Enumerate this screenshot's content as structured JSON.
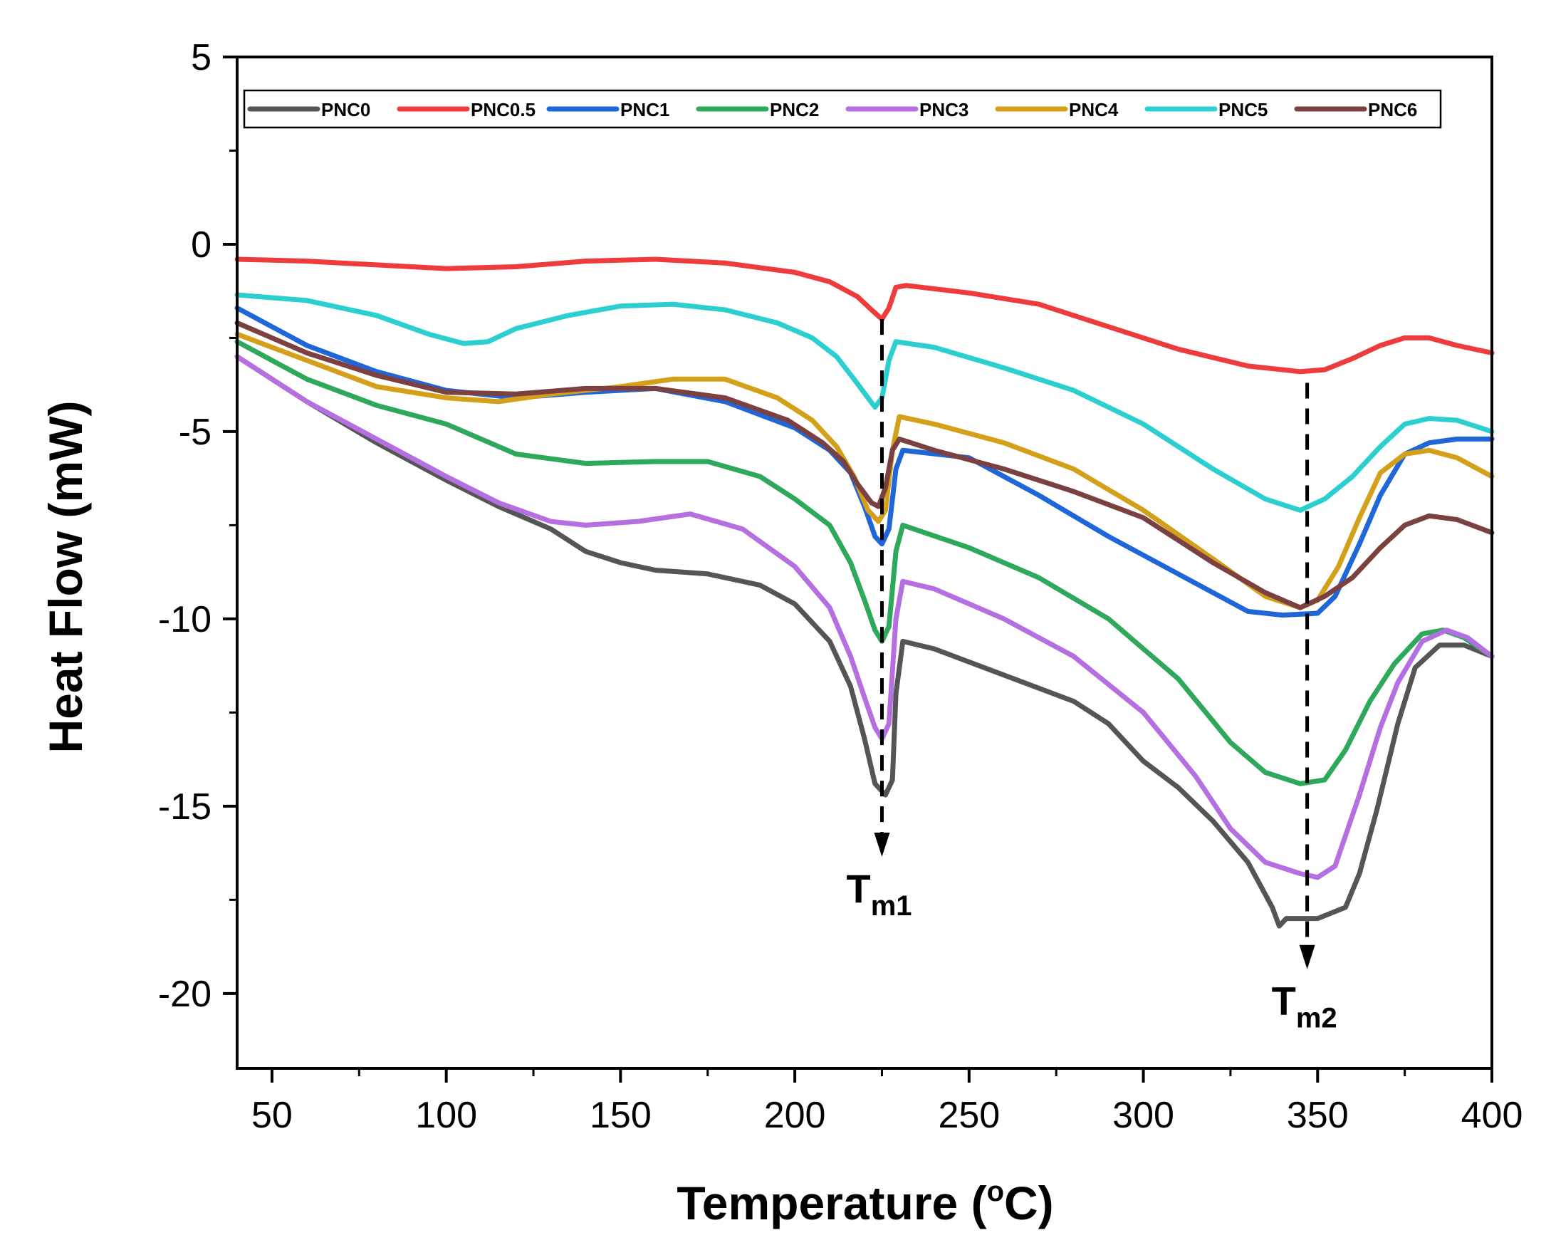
{
  "chart_data": {
    "type": "line",
    "title": "",
    "xlabel": "Temperature (",
    "xlabel_sup": "o",
    "xlabel_end": "C)",
    "ylabel": "Heat Flow (mW)",
    "xlim": [
      40,
      400
    ],
    "ylim": [
      -22,
      5
    ],
    "xticks": [
      50,
      100,
      150,
      200,
      250,
      300,
      350,
      400
    ],
    "yticks": [
      5,
      0,
      -5,
      -10,
      -15,
      -20
    ],
    "xtick_labels": [
      "50",
      "100",
      "150",
      "200",
      "250",
      "300",
      "350",
      "400"
    ],
    "ytick_labels": [
      "5",
      "0",
      "-5",
      "-10",
      "-15",
      "-20"
    ],
    "legend_position": "top",
    "annotations": [
      {
        "main": "T",
        "sub": "m1",
        "x": 225,
        "y_top": -2.0,
        "y_bottom": -16.2
      },
      {
        "main": "T",
        "sub": "m2",
        "x": 347,
        "y_top": -3.7,
        "y_bottom": -19.2
      }
    ],
    "series": [
      {
        "name": "PNC0",
        "color": "#555555",
        "points": [
          [
            40,
            -3.0
          ],
          [
            60,
            -4.2
          ],
          [
            80,
            -5.3
          ],
          [
            100,
            -6.3
          ],
          [
            115,
            -7.0
          ],
          [
            130,
            -7.6
          ],
          [
            140,
            -8.2
          ],
          [
            150,
            -8.5
          ],
          [
            160,
            -8.7
          ],
          [
            175,
            -8.8
          ],
          [
            190,
            -9.1
          ],
          [
            200,
            -9.6
          ],
          [
            210,
            -10.6
          ],
          [
            216,
            -11.8
          ],
          [
            220,
            -13.2
          ],
          [
            223,
            -14.4
          ],
          [
            226,
            -14.7
          ],
          [
            228,
            -14.3
          ],
          [
            229,
            -12.0
          ],
          [
            231,
            -10.6
          ],
          [
            240,
            -10.8
          ],
          [
            260,
            -11.5
          ],
          [
            280,
            -12.2
          ],
          [
            290,
            -12.8
          ],
          [
            300,
            -13.8
          ],
          [
            310,
            -14.5
          ],
          [
            320,
            -15.4
          ],
          [
            330,
            -16.5
          ],
          [
            337,
            -17.7
          ],
          [
            339,
            -18.2
          ],
          [
            341,
            -18.0
          ],
          [
            350,
            -18.0
          ],
          [
            358,
            -17.7
          ],
          [
            362,
            -16.8
          ],
          [
            367,
            -15.1
          ],
          [
            373,
            -12.8
          ],
          [
            378,
            -11.3
          ],
          [
            385,
            -10.7
          ],
          [
            392,
            -10.7
          ],
          [
            400,
            -11.0
          ]
        ]
      },
      {
        "name": "PNC0.5",
        "color": "#ee3b3b",
        "points": [
          [
            40,
            -0.4
          ],
          [
            60,
            -0.45
          ],
          [
            80,
            -0.55
          ],
          [
            100,
            -0.65
          ],
          [
            120,
            -0.6
          ],
          [
            140,
            -0.45
          ],
          [
            160,
            -0.4
          ],
          [
            180,
            -0.5
          ],
          [
            200,
            -0.75
          ],
          [
            210,
            -1.0
          ],
          [
            218,
            -1.4
          ],
          [
            222,
            -1.75
          ],
          [
            225,
            -2.0
          ],
          [
            227,
            -1.7
          ],
          [
            229,
            -1.15
          ],
          [
            232,
            -1.1
          ],
          [
            250,
            -1.3
          ],
          [
            270,
            -1.6
          ],
          [
            290,
            -2.2
          ],
          [
            310,
            -2.8
          ],
          [
            330,
            -3.25
          ],
          [
            345,
            -3.4
          ],
          [
            352,
            -3.35
          ],
          [
            360,
            -3.05
          ],
          [
            368,
            -2.7
          ],
          [
            375,
            -2.5
          ],
          [
            382,
            -2.5
          ],
          [
            390,
            -2.7
          ],
          [
            400,
            -2.9
          ]
        ]
      },
      {
        "name": "PNC1",
        "color": "#1f66d9",
        "points": [
          [
            40,
            -1.7
          ],
          [
            60,
            -2.7
          ],
          [
            80,
            -3.4
          ],
          [
            100,
            -3.9
          ],
          [
            120,
            -4.1
          ],
          [
            140,
            -3.95
          ],
          [
            160,
            -3.85
          ],
          [
            180,
            -4.2
          ],
          [
            200,
            -4.9
          ],
          [
            210,
            -5.5
          ],
          [
            216,
            -6.1
          ],
          [
            220,
            -7.0
          ],
          [
            223,
            -7.8
          ],
          [
            225,
            -8.0
          ],
          [
            227,
            -7.6
          ],
          [
            229,
            -6.0
          ],
          [
            231,
            -5.5
          ],
          [
            250,
            -5.7
          ],
          [
            270,
            -6.7
          ],
          [
            290,
            -7.8
          ],
          [
            310,
            -8.8
          ],
          [
            330,
            -9.8
          ],
          [
            340,
            -9.9
          ],
          [
            350,
            -9.85
          ],
          [
            355,
            -9.4
          ],
          [
            362,
            -8.0
          ],
          [
            368,
            -6.7
          ],
          [
            375,
            -5.6
          ],
          [
            382,
            -5.3
          ],
          [
            390,
            -5.2
          ],
          [
            400,
            -5.2
          ]
        ]
      },
      {
        "name": "PNC2",
        "color": "#2ea85a",
        "points": [
          [
            40,
            -2.6
          ],
          [
            60,
            -3.6
          ],
          [
            80,
            -4.3
          ],
          [
            100,
            -4.8
          ],
          [
            120,
            -5.6
          ],
          [
            140,
            -5.85
          ],
          [
            160,
            -5.8
          ],
          [
            175,
            -5.8
          ],
          [
            190,
            -6.2
          ],
          [
            200,
            -6.8
          ],
          [
            210,
            -7.5
          ],
          [
            216,
            -8.5
          ],
          [
            220,
            -9.5
          ],
          [
            223,
            -10.3
          ],
          [
            225,
            -10.6
          ],
          [
            227,
            -10.2
          ],
          [
            229,
            -8.2
          ],
          [
            231,
            -7.5
          ],
          [
            250,
            -8.1
          ],
          [
            270,
            -8.9
          ],
          [
            290,
            -10.0
          ],
          [
            310,
            -11.6
          ],
          [
            325,
            -13.3
          ],
          [
            335,
            -14.1
          ],
          [
            345,
            -14.4
          ],
          [
            352,
            -14.3
          ],
          [
            358,
            -13.5
          ],
          [
            365,
            -12.2
          ],
          [
            372,
            -11.2
          ],
          [
            380,
            -10.4
          ],
          [
            386,
            -10.3
          ],
          [
            392,
            -10.5
          ],
          [
            400,
            -11.0
          ]
        ]
      },
      {
        "name": "PNC3",
        "color": "#b56fe0",
        "points": [
          [
            40,
            -3.0
          ],
          [
            60,
            -4.2
          ],
          [
            80,
            -5.2
          ],
          [
            100,
            -6.2
          ],
          [
            115,
            -6.9
          ],
          [
            130,
            -7.4
          ],
          [
            140,
            -7.5
          ],
          [
            155,
            -7.4
          ],
          [
            170,
            -7.2
          ],
          [
            185,
            -7.6
          ],
          [
            200,
            -8.6
          ],
          [
            210,
            -9.7
          ],
          [
            216,
            -11.0
          ],
          [
            220,
            -12.1
          ],
          [
            223,
            -12.9
          ],
          [
            225,
            -13.2
          ],
          [
            227,
            -12.8
          ],
          [
            229,
            -10.0
          ],
          [
            231,
            -9.0
          ],
          [
            240,
            -9.2
          ],
          [
            260,
            -10.0
          ],
          [
            280,
            -11.0
          ],
          [
            300,
            -12.5
          ],
          [
            315,
            -14.2
          ],
          [
            325,
            -15.6
          ],
          [
            335,
            -16.5
          ],
          [
            345,
            -16.8
          ],
          [
            350,
            -16.9
          ],
          [
            355,
            -16.6
          ],
          [
            362,
            -14.7
          ],
          [
            368,
            -12.9
          ],
          [
            373,
            -11.7
          ],
          [
            380,
            -10.6
          ],
          [
            387,
            -10.3
          ],
          [
            393,
            -10.5
          ],
          [
            400,
            -11.0
          ]
        ]
      },
      {
        "name": "PNC4",
        "color": "#d4a01a",
        "points": [
          [
            40,
            -2.4
          ],
          [
            60,
            -3.1
          ],
          [
            80,
            -3.8
          ],
          [
            100,
            -4.1
          ],
          [
            115,
            -4.2
          ],
          [
            130,
            -4.0
          ],
          [
            150,
            -3.8
          ],
          [
            165,
            -3.6
          ],
          [
            180,
            -3.6
          ],
          [
            195,
            -4.1
          ],
          [
            205,
            -4.7
          ],
          [
            212,
            -5.4
          ],
          [
            217,
            -6.2
          ],
          [
            221,
            -7.1
          ],
          [
            224,
            -7.4
          ],
          [
            226,
            -7.1
          ],
          [
            228,
            -5.5
          ],
          [
            230,
            -4.6
          ],
          [
            240,
            -4.8
          ],
          [
            260,
            -5.3
          ],
          [
            280,
            -6.0
          ],
          [
            300,
            -7.1
          ],
          [
            320,
            -8.4
          ],
          [
            335,
            -9.4
          ],
          [
            345,
            -9.7
          ],
          [
            350,
            -9.5
          ],
          [
            356,
            -8.6
          ],
          [
            362,
            -7.3
          ],
          [
            368,
            -6.1
          ],
          [
            375,
            -5.6
          ],
          [
            382,
            -5.5
          ],
          [
            390,
            -5.7
          ],
          [
            400,
            -6.2
          ]
        ]
      },
      {
        "name": "PNC5",
        "color": "#2ccfcf",
        "points": [
          [
            40,
            -1.35
          ],
          [
            60,
            -1.5
          ],
          [
            80,
            -1.9
          ],
          [
            95,
            -2.4
          ],
          [
            105,
            -2.65
          ],
          [
            112,
            -2.6
          ],
          [
            120,
            -2.25
          ],
          [
            135,
            -1.9
          ],
          [
            150,
            -1.65
          ],
          [
            165,
            -1.6
          ],
          [
            180,
            -1.75
          ],
          [
            195,
            -2.1
          ],
          [
            205,
            -2.5
          ],
          [
            212,
            -3.0
          ],
          [
            217,
            -3.6
          ],
          [
            221,
            -4.1
          ],
          [
            223,
            -4.35
          ],
          [
            225,
            -4.1
          ],
          [
            227,
            -3.1
          ],
          [
            229,
            -2.6
          ],
          [
            240,
            -2.75
          ],
          [
            260,
            -3.3
          ],
          [
            280,
            -3.9
          ],
          [
            300,
            -4.8
          ],
          [
            320,
            -6.0
          ],
          [
            335,
            -6.8
          ],
          [
            345,
            -7.1
          ],
          [
            352,
            -6.8
          ],
          [
            360,
            -6.2
          ],
          [
            368,
            -5.4
          ],
          [
            375,
            -4.8
          ],
          [
            382,
            -4.65
          ],
          [
            390,
            -4.7
          ],
          [
            400,
            -5.0
          ]
        ]
      },
      {
        "name": "PNC6",
        "color": "#7b4141",
        "points": [
          [
            40,
            -2.1
          ],
          [
            60,
            -2.9
          ],
          [
            80,
            -3.5
          ],
          [
            100,
            -3.95
          ],
          [
            120,
            -4.0
          ],
          [
            140,
            -3.85
          ],
          [
            160,
            -3.85
          ],
          [
            180,
            -4.1
          ],
          [
            198,
            -4.7
          ],
          [
            208,
            -5.3
          ],
          [
            214,
            -5.8
          ],
          [
            218,
            -6.4
          ],
          [
            222,
            -6.9
          ],
          [
            224,
            -7.0
          ],
          [
            226,
            -6.5
          ],
          [
            228,
            -5.5
          ],
          [
            230,
            -5.2
          ],
          [
            240,
            -5.5
          ],
          [
            260,
            -6.0
          ],
          [
            280,
            -6.6
          ],
          [
            300,
            -7.3
          ],
          [
            320,
            -8.5
          ],
          [
            335,
            -9.3
          ],
          [
            345,
            -9.7
          ],
          [
            352,
            -9.4
          ],
          [
            360,
            -8.9
          ],
          [
            368,
            -8.1
          ],
          [
            375,
            -7.5
          ],
          [
            382,
            -7.25
          ],
          [
            390,
            -7.35
          ],
          [
            400,
            -7.7
          ]
        ]
      }
    ]
  }
}
